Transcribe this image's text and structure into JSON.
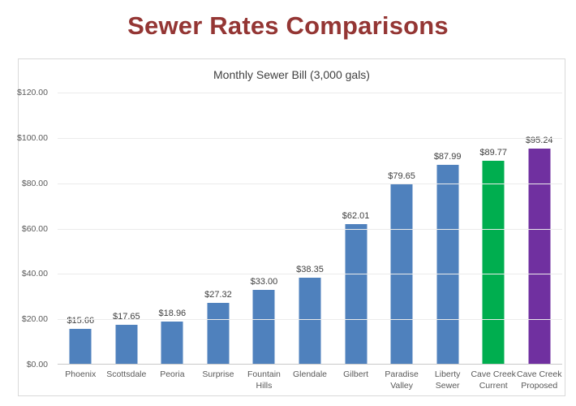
{
  "page": {
    "title": "Sewer Rates Comparisons"
  },
  "colors": {
    "title_text": "#943634",
    "bar_default": "#4F81BD",
    "bar_cave_creek_current": "#00AE4F",
    "bar_cave_creek_proposed": "#7030A0",
    "axis_text": "#595959",
    "value_label_text": "#404040",
    "gridline": "#EBEBEB",
    "panel_border": "#D9D9D9"
  },
  "chart_data": {
    "type": "bar",
    "title": "Monthly Sewer Bill (3,000 gals)",
    "categories": [
      "Phoenix",
      "Scottsdale",
      "Peoria",
      "Surprise",
      "Fountain Hills",
      "Glendale",
      "Gilbert",
      "Paradise Valley",
      "Liberty Sewer",
      "Cave Creek Current",
      "Cave Creek Proposed"
    ],
    "values": [
      15.66,
      17.65,
      18.96,
      27.32,
      33.0,
      38.35,
      62.01,
      79.65,
      87.99,
      89.77,
      95.24
    ],
    "value_labels": [
      "$15.66",
      "$17.65",
      "$18.96",
      "$27.32",
      "$33.00",
      "$38.35",
      "$62.01",
      "$79.65",
      "$87.99",
      "$89.77",
      "$95.24"
    ],
    "xtick_labels": [
      "Phoenix",
      "Scottsdale",
      "Peoria",
      "Surprise",
      "Fountain Hills",
      "Glendale",
      "Gilbert",
      "Paradise\nValley",
      "Liberty Sewer",
      "Cave Creek\nCurrent",
      "Cave Creek\nProposed"
    ],
    "bar_colors": [
      "#4F81BD",
      "#4F81BD",
      "#4F81BD",
      "#4F81BD",
      "#4F81BD",
      "#4F81BD",
      "#4F81BD",
      "#4F81BD",
      "#4F81BD",
      "#00AE4F",
      "#7030A0"
    ],
    "ytick_labels": [
      "$0.00",
      "$20.00",
      "$40.00",
      "$60.00",
      "$80.00",
      "$100.00",
      "$120.00"
    ],
    "ylim": [
      0,
      120
    ],
    "ytick_step": 20,
    "xlabel": "",
    "ylabel": "",
    "grid": true,
    "legend": "none"
  }
}
